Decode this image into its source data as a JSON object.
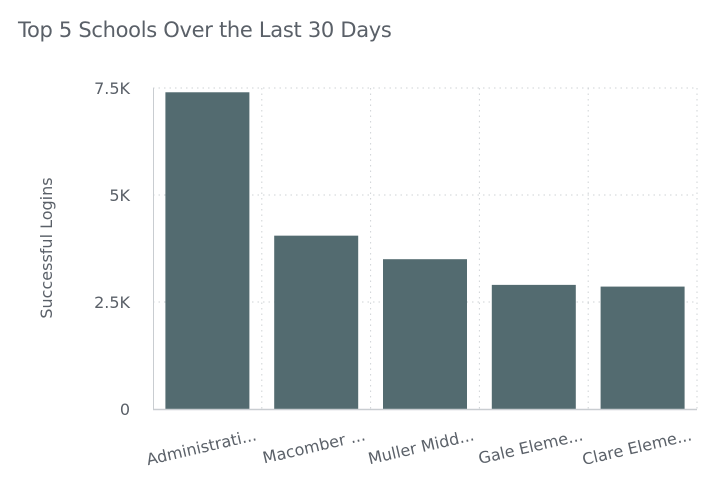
{
  "chart_data": {
    "type": "bar",
    "title": "Top 5 Schools Over the Last 30 Days",
    "xlabel": "",
    "ylabel": "Successful Logins",
    "categories": [
      "Administrati...",
      "Macomber ...",
      "Muller Midd...",
      "Gale Eleme...",
      "Clare Eleme..."
    ],
    "values": [
      7400,
      4050,
      3500,
      2900,
      2860
    ],
    "ylim": [
      0,
      7500
    ],
    "yticks": [
      {
        "value": 0,
        "label": "0"
      },
      {
        "value": 2500,
        "label": "2.5K"
      },
      {
        "value": 5000,
        "label": "5K"
      },
      {
        "value": 7500,
        "label": "7.5K"
      }
    ],
    "grid": true,
    "legend": "none",
    "colors": {
      "bar": "#536b70",
      "grid": "#cfd3d6",
      "axis": "#c9cdd1",
      "text": "#5a6068"
    }
  }
}
